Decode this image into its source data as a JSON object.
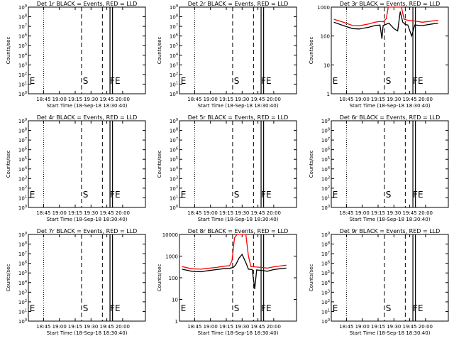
{
  "figure": {
    "xlabel": "Start Time (18-Sep-18 18:30:40)",
    "ylabel": "Counts/sec",
    "x_ticks": [
      "18:45",
      "19:00",
      "19:15",
      "19:30",
      "19:45",
      "20:00"
    ],
    "event_marks": {
      "e": "E",
      "s": "S",
      "fe": "FE"
    },
    "colors": {
      "events": "#000000",
      "lld": "#ff0000",
      "background": "#ffffff",
      "axes": "#000000"
    }
  },
  "chart_data": [
    {
      "type": "line",
      "title": "Det 1r BLACK = Events, RED = LLD",
      "xlabel": "Start Time (18-Sep-18 18:30:40)",
      "ylabel": "Counts/sec",
      "yscale": "log",
      "ylim": [
        1,
        1000000000
      ],
      "y_ticks": [
        {
          "v": 1,
          "t": "10^0"
        },
        {
          "v": 10,
          "t": "10^1"
        },
        {
          "v": 100,
          "t": "10^2"
        },
        {
          "v": 1000,
          "t": "10^3"
        },
        {
          "v": 10000,
          "t": "10^4"
        },
        {
          "v": 100000,
          "t": "10^5"
        },
        {
          "v": 1000000,
          "t": "10^6"
        },
        {
          "v": 10000000,
          "t": "10^7"
        },
        {
          "v": 100000000,
          "t": "10^8"
        },
        {
          "v": 1000000000,
          "t": "10^9"
        }
      ],
      "x_ticks": [
        "18:45",
        "19:00",
        "19:15",
        "19:30",
        "19:45",
        "20:00"
      ],
      "series": []
    },
    {
      "type": "line",
      "title": "Det 2r BLACK = Events, RED = LLD",
      "xlabel": "Start Time (18-Sep-18 18:30:40)",
      "ylabel": "Counts/sec",
      "yscale": "log",
      "ylim": [
        1,
        1000000000
      ],
      "y_ticks": [
        {
          "v": 1,
          "t": "10^0"
        },
        {
          "v": 10,
          "t": "10^1"
        },
        {
          "v": 100,
          "t": "10^2"
        },
        {
          "v": 1000,
          "t": "10^3"
        },
        {
          "v": 10000,
          "t": "10^4"
        },
        {
          "v": 100000,
          "t": "10^5"
        },
        {
          "v": 1000000,
          "t": "10^6"
        },
        {
          "v": 10000000,
          "t": "10^7"
        },
        {
          "v": 100000000,
          "t": "10^8"
        },
        {
          "v": 1000000000,
          "t": "10^9"
        }
      ],
      "x_ticks": [
        "18:45",
        "19:00",
        "19:15",
        "19:30",
        "19:45",
        "20:00"
      ],
      "series": []
    },
    {
      "type": "line",
      "title": "Det 3r BLACK = Events, RED = LLD",
      "xlabel": "Start Time (18-Sep-18 18:30:40)",
      "ylabel": "Counts/sec",
      "yscale": "log",
      "ylim": [
        1,
        1000
      ],
      "y_ticks": [
        {
          "v": 1,
          "t": "1"
        },
        {
          "v": 10,
          "t": "10"
        },
        {
          "v": 100,
          "t": "100"
        },
        {
          "v": 1000,
          "t": "1000"
        }
      ],
      "x_ticks": [
        "18:45",
        "19:00",
        "19:15",
        "19:30",
        "19:45",
        "20:00"
      ],
      "series": [
        {
          "role": "events",
          "color": "#000000",
          "points": [
            [
              18.55,
              300
            ],
            [
              18.7,
              230
            ],
            [
              18.85,
              180
            ],
            [
              18.95,
              175
            ],
            [
              19.1,
              200
            ],
            [
              19.2,
              230
            ],
            [
              19.28,
              240
            ],
            [
              19.31,
              80
            ],
            [
              19.33,
              230
            ],
            [
              19.42,
              280
            ],
            [
              19.5,
              180
            ],
            [
              19.56,
              150
            ],
            [
              19.6,
              700
            ],
            [
              19.64,
              300
            ],
            [
              19.68,
              250
            ],
            [
              19.72,
              240
            ],
            [
              19.78,
              100
            ],
            [
              19.83,
              240
            ],
            [
              19.95,
              230
            ],
            [
              20.1,
              260
            ],
            [
              20.2,
              280
            ]
          ]
        },
        {
          "role": "lld",
          "color": "#ff0000",
          "points": [
            [
              18.55,
              380
            ],
            [
              18.7,
              300
            ],
            [
              18.85,
              230
            ],
            [
              18.95,
              225
            ],
            [
              19.1,
              260
            ],
            [
              19.2,
              300
            ],
            [
              19.28,
              320
            ],
            [
              19.33,
              310
            ],
            [
              19.38,
              400
            ],
            [
              19.41,
              1000
            ],
            [
              19.45,
              1000
            ],
            [
              19.5,
              1000
            ],
            [
              19.58,
              1000
            ],
            [
              19.62,
              1000
            ],
            [
              19.66,
              380
            ],
            [
              19.72,
              350
            ],
            [
              19.83,
              330
            ],
            [
              19.95,
              300
            ],
            [
              20.1,
              330
            ],
            [
              20.2,
              350
            ]
          ]
        }
      ]
    },
    {
      "type": "line",
      "title": "Det 4r BLACK = Events, RED = LLD",
      "xlabel": "Start Time (18-Sep-18 18:30:40)",
      "ylabel": "Counts/sec",
      "yscale": "log",
      "ylim": [
        1,
        1000000000
      ],
      "y_ticks": [
        {
          "v": 1,
          "t": "10^0"
        },
        {
          "v": 10,
          "t": "10^1"
        },
        {
          "v": 100,
          "t": "10^2"
        },
        {
          "v": 1000,
          "t": "10^3"
        },
        {
          "v": 10000,
          "t": "10^4"
        },
        {
          "v": 100000,
          "t": "10^5"
        },
        {
          "v": 1000000,
          "t": "10^6"
        },
        {
          "v": 10000000,
          "t": "10^7"
        },
        {
          "v": 100000000,
          "t": "10^8"
        },
        {
          "v": 1000000000,
          "t": "10^9"
        }
      ],
      "x_ticks": [
        "18:45",
        "19:00",
        "19:15",
        "19:30",
        "19:45",
        "20:00"
      ],
      "series": []
    },
    {
      "type": "line",
      "title": "Det 5r BLACK = Events, RED = LLD",
      "xlabel": "Start Time (18-Sep-18 18:30:40)",
      "ylabel": "Counts/sec",
      "yscale": "log",
      "ylim": [
        1,
        1000000000
      ],
      "y_ticks": [
        {
          "v": 1,
          "t": "10^0"
        },
        {
          "v": 10,
          "t": "10^1"
        },
        {
          "v": 100,
          "t": "10^2"
        },
        {
          "v": 1000,
          "t": "10^3"
        },
        {
          "v": 10000,
          "t": "10^4"
        },
        {
          "v": 100000,
          "t": "10^5"
        },
        {
          "v": 1000000,
          "t": "10^6"
        },
        {
          "v": 10000000,
          "t": "10^7"
        },
        {
          "v": 100000000,
          "t": "10^8"
        },
        {
          "v": 1000000000,
          "t": "10^9"
        }
      ],
      "x_ticks": [
        "18:45",
        "19:00",
        "19:15",
        "19:30",
        "19:45",
        "20:00"
      ],
      "series": []
    },
    {
      "type": "line",
      "title": "Det 6r BLACK = Events, RED = LLD",
      "xlabel": "Start Time (18-Sep-18 18:30:40)",
      "ylabel": "Counts/sec",
      "yscale": "log",
      "ylim": [
        1,
        1000000000
      ],
      "y_ticks": [
        {
          "v": 1,
          "t": "10^0"
        },
        {
          "v": 10,
          "t": "10^1"
        },
        {
          "v": 100,
          "t": "10^2"
        },
        {
          "v": 1000,
          "t": "10^3"
        },
        {
          "v": 10000,
          "t": "10^4"
        },
        {
          "v": 100000,
          "t": "10^5"
        },
        {
          "v": 1000000,
          "t": "10^6"
        },
        {
          "v": 10000000,
          "t": "10^7"
        },
        {
          "v": 100000000,
          "t": "10^8"
        },
        {
          "v": 1000000000,
          "t": "10^9"
        }
      ],
      "x_ticks": [
        "18:45",
        "19:00",
        "19:15",
        "19:30",
        "19:45",
        "20:00"
      ],
      "series": []
    },
    {
      "type": "line",
      "title": "Det 7r BLACK = Events, RED = LLD",
      "xlabel": "Start Time (18-Sep-18 18:30:40)",
      "ylabel": "Counts/sec",
      "yscale": "log",
      "ylim": [
        1,
        1000000000
      ],
      "y_ticks": [
        {
          "v": 1,
          "t": "10^0"
        },
        {
          "v": 10,
          "t": "10^1"
        },
        {
          "v": 100,
          "t": "10^2"
        },
        {
          "v": 1000,
          "t": "10^3"
        },
        {
          "v": 10000,
          "t": "10^4"
        },
        {
          "v": 100000,
          "t": "10^5"
        },
        {
          "v": 1000000,
          "t": "10^6"
        },
        {
          "v": 10000000,
          "t": "10^7"
        },
        {
          "v": 100000000,
          "t": "10^8"
        },
        {
          "v": 1000000000,
          "t": "10^9"
        }
      ],
      "x_ticks": [
        "18:45",
        "19:00",
        "19:15",
        "19:30",
        "19:45",
        "20:00"
      ],
      "series": []
    },
    {
      "type": "line",
      "title": "Det 8r BLACK = Events, RED = LLD",
      "xlabel": "Start Time (18-Sep-18 18:30:40)",
      "ylabel": "Counts/sec",
      "yscale": "log",
      "ylim": [
        1,
        10000
      ],
      "y_ticks": [
        {
          "v": 1,
          "t": "1"
        },
        {
          "v": 10,
          "t": "10"
        },
        {
          "v": 100,
          "t": "100"
        },
        {
          "v": 1000,
          "t": "1000"
        },
        {
          "v": 10000,
          "t": "10000"
        }
      ],
      "x_ticks": [
        "18:45",
        "19:00",
        "19:15",
        "19:30",
        "19:45",
        "20:00"
      ],
      "series": [
        {
          "role": "events",
          "color": "#000000",
          "points": [
            [
              18.55,
              250
            ],
            [
              18.7,
              200
            ],
            [
              18.85,
              190
            ],
            [
              18.95,
              210
            ],
            [
              19.1,
              240
            ],
            [
              19.2,
              260
            ],
            [
              19.3,
              270
            ],
            [
              19.36,
              300
            ],
            [
              19.4,
              400
            ],
            [
              19.45,
              800
            ],
            [
              19.5,
              1200
            ],
            [
              19.56,
              500
            ],
            [
              19.6,
              250
            ],
            [
              19.66,
              240
            ],
            [
              19.7,
              30
            ],
            [
              19.73,
              230
            ],
            [
              19.8,
              220
            ],
            [
              19.9,
              200
            ],
            [
              20.0,
              240
            ],
            [
              20.1,
              260
            ],
            [
              20.2,
              280
            ]
          ]
        },
        {
          "role": "lld",
          "color": "#ff0000",
          "points": [
            [
              18.55,
              330
            ],
            [
              18.7,
              260
            ],
            [
              18.85,
              250
            ],
            [
              18.95,
              270
            ],
            [
              19.1,
              300
            ],
            [
              19.2,
              340
            ],
            [
              19.3,
              360
            ],
            [
              19.34,
              600
            ],
            [
              19.38,
              7000
            ],
            [
              19.42,
              10000
            ],
            [
              19.5,
              10000
            ],
            [
              19.56,
              10000
            ],
            [
              19.6,
              1000
            ],
            [
              19.64,
              330
            ],
            [
              19.7,
              320
            ],
            [
              19.8,
              300
            ],
            [
              19.9,
              280
            ],
            [
              20.0,
              320
            ],
            [
              20.1,
              350
            ],
            [
              20.2,
              380
            ]
          ]
        }
      ]
    },
    {
      "type": "line",
      "title": "Det 9r BLACK = Events, RED = LLD",
      "xlabel": "Start Time (18-Sep-18 18:30:40)",
      "ylabel": "Counts/sec",
      "yscale": "log",
      "ylim": [
        1,
        1000000000
      ],
      "y_ticks": [
        {
          "v": 1,
          "t": "10^0"
        },
        {
          "v": 10,
          "t": "10^1"
        },
        {
          "v": 100,
          "t": "10^2"
        },
        {
          "v": 1000,
          "t": "10^3"
        },
        {
          "v": 10000,
          "t": "10^4"
        },
        {
          "v": 100000,
          "t": "10^5"
        },
        {
          "v": 1000000,
          "t": "10^6"
        },
        {
          "v": 10000000,
          "t": "10^7"
        },
        {
          "v": 100000000,
          "t": "10^8"
        },
        {
          "v": 1000000000,
          "t": "10^9"
        }
      ],
      "x_ticks": [
        "18:45",
        "19:00",
        "19:15",
        "19:30",
        "19:45",
        "20:00"
      ],
      "series": []
    }
  ]
}
